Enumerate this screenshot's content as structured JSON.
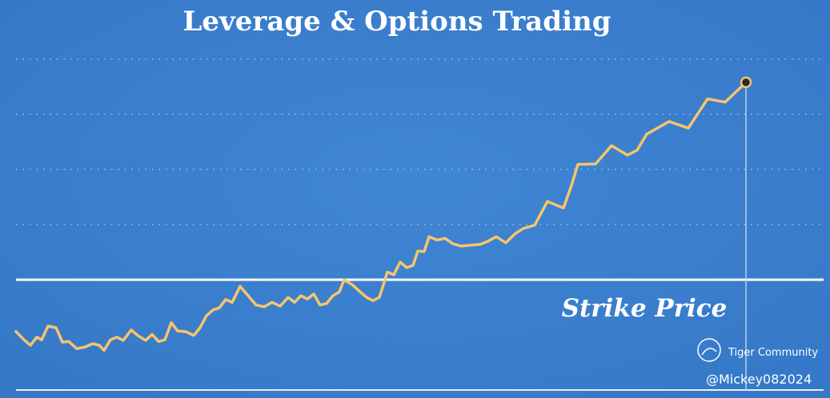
{
  "chart_data": {
    "type": "line",
    "title": "Leverage & Options Trading",
    "x": [
      0,
      10,
      18,
      26,
      32,
      40,
      50,
      58,
      66,
      76,
      86,
      96,
      104,
      110,
      118,
      126,
      134,
      144,
      152,
      162,
      170,
      178,
      186,
      194,
      202,
      212,
      222,
      230,
      238,
      246,
      254,
      262,
      270,
      280,
      290,
      300,
      310,
      320,
      330,
      340,
      348,
      356,
      364,
      372,
      380,
      388,
      396,
      404,
      410,
      420,
      430,
      438,
      446,
      454,
      464,
      472,
      480,
      488,
      496,
      502,
      510,
      516,
      526,
      536,
      546,
      556,
      580,
      590,
      600,
      612,
      624,
      634,
      648,
      664,
      674,
      684,
      694,
      702,
      724,
      744,
      764,
      776,
      788,
      816,
      840,
      864,
      886,
      912
    ],
    "series": [
      {
        "color": "#f7c46c",
        "values": [
          1.06,
          0.91,
          0.81,
          0.96,
          0.91,
          1.16,
          1.13,
          0.87,
          0.88,
          0.75,
          0.78,
          0.84,
          0.81,
          0.72,
          0.91,
          0.96,
          0.9,
          1.09,
          0.99,
          0.9,
          1.01,
          0.88,
          0.91,
          1.22,
          1.07,
          1.06,
          0.99,
          1.13,
          1.35,
          1.45,
          1.49,
          1.64,
          1.59,
          1.88,
          1.71,
          1.54,
          1.51,
          1.59,
          1.52,
          1.68,
          1.59,
          1.71,
          1.65,
          1.74,
          1.54,
          1.57,
          1.71,
          1.78,
          2.0,
          1.91,
          1.78,
          1.68,
          1.62,
          1.68,
          2.14,
          2.09,
          2.32,
          2.22,
          2.26,
          2.52,
          2.51,
          2.78,
          2.72,
          2.75,
          2.65,
          2.61,
          2.64,
          2.7,
          2.78,
          2.67,
          2.84,
          2.93,
          2.99,
          3.42,
          3.36,
          3.3,
          3.71,
          4.09,
          4.1,
          4.43,
          4.26,
          4.35,
          4.64,
          4.87,
          4.75,
          5.28,
          5.22,
          5.58
        ]
      }
    ],
    "xlim": [
      0,
      1009
    ],
    "ylim": [
      0,
      6
    ],
    "yticks": [
      3,
      4,
      5,
      6
    ],
    "grid": true,
    "strike": {
      "label": "Strike Price",
      "value": 2
    },
    "watermark": {
      "brand": "Tiger Community",
      "user": "@Mickey082024"
    }
  }
}
